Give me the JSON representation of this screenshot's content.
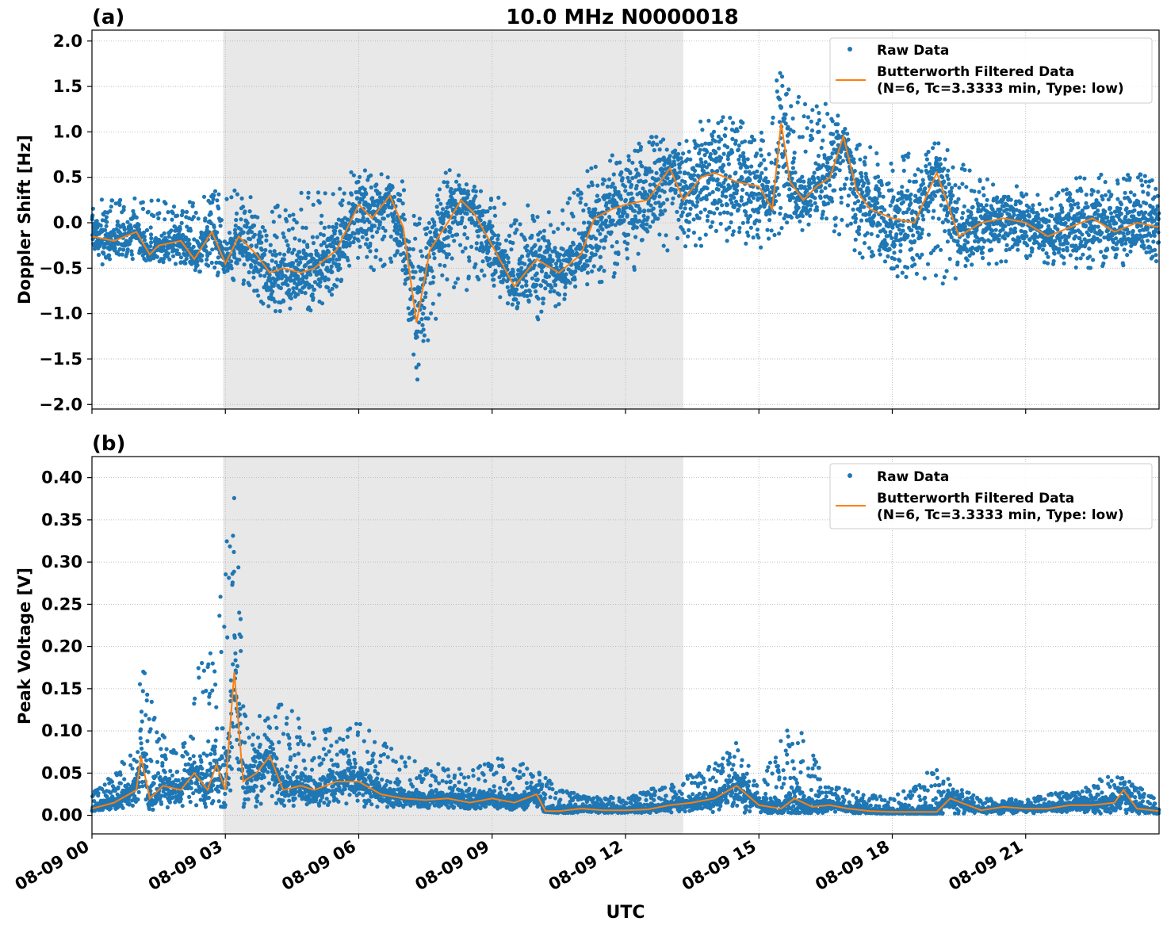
{
  "figure": {
    "title": "10.0 MHz N0000018",
    "xlabel": "UTC",
    "x_tick_labels": [
      "08-09 00",
      "08-09 03",
      "08-09 06",
      "08-09 09",
      "08-09 12",
      "08-09 15",
      "08-09 18",
      "08-09 21"
    ]
  },
  "legend": {
    "raw": "Raw Data",
    "filtered_line1": "Butterworth Filtered Data",
    "filtered_line2": "(N=6, Tc=3.3333 min, Type: low)"
  },
  "colors": {
    "raw": "#1f77b4",
    "filtered": "#ff7f0e",
    "shade": "#e8e8e8",
    "grid": "#b0b0b0"
  },
  "chart_data": [
    {
      "panel_label": "(a)",
      "type": "scatter",
      "ylabel": "Doppler Shift [Hz]",
      "xlim_hours": [
        0,
        24
      ],
      "ylim": [
        -2.05,
        2.12
      ],
      "y_ticks": [
        -2.0,
        -1.5,
        -1.0,
        -0.5,
        0.0,
        0.5,
        1.0,
        1.5,
        2.0
      ],
      "y_tick_labels": [
        "−2.0",
        "−1.5",
        "−1.0",
        "−0.5",
        "0.0",
        "0.5",
        "1.0",
        "1.5",
        "2.0"
      ],
      "x_ticks_hours": [
        0,
        3,
        6,
        9,
        12,
        15,
        18,
        21
      ],
      "shaded_span_hours": [
        2.95,
        13.3
      ],
      "grid": true,
      "legend_position": "upper right",
      "series": [
        {
          "name": "Raw Data",
          "kind": "scatter",
          "envelope": {
            "hours": [
              0,
              1,
              2,
              3,
              4,
              5,
              6,
              7,
              7.3,
              8,
              9,
              10,
              11,
              12,
              13,
              14,
              15,
              15.5,
              16,
              16.7,
              17,
              18,
              19,
              20,
              21,
              22,
              23,
              24
            ],
            "low": [
              -0.5,
              -0.4,
              -0.5,
              -0.6,
              -1.0,
              -1.0,
              -0.5,
              -0.6,
              -1.8,
              -0.7,
              -0.8,
              -1.1,
              -0.7,
              -0.6,
              -0.4,
              -0.2,
              -0.3,
              -0.2,
              -0.1,
              -0.1,
              -0.3,
              -0.6,
              -0.7,
              -0.5,
              -0.4,
              -0.5,
              -0.5,
              -0.5
            ],
            "high": [
              0.25,
              0.3,
              0.2,
              0.4,
              0.2,
              0.45,
              0.6,
              0.5,
              0.0,
              0.6,
              0.3,
              0.2,
              0.55,
              0.9,
              1.0,
              1.2,
              1.1,
              1.75,
              1.3,
              1.4,
              1.0,
              0.7,
              0.9,
              0.5,
              0.4,
              0.5,
              0.6,
              0.5
            ]
          }
        },
        {
          "name": "Butterworth Filtered Data (N=6, Tc=3.3333 min, Type: low)",
          "kind": "line",
          "hours": [
            0,
            0.5,
            1,
            1.3,
            1.5,
            2,
            2.3,
            2.7,
            3,
            3.3,
            3.7,
            4,
            4.3,
            4.7,
            5,
            5.5,
            6,
            6.3,
            6.7,
            7,
            7.3,
            7.6,
            8,
            8.3,
            8.6,
            9,
            9.5,
            10,
            10.5,
            11,
            11.3,
            11.7,
            12,
            12.5,
            13,
            13.3,
            13.7,
            14,
            14.5,
            15,
            15.3,
            15.5,
            15.7,
            16,
            16.3,
            16.6,
            16.9,
            17.2,
            17.5,
            18,
            18.5,
            19,
            19.5,
            20,
            20.5,
            21,
            21.5,
            22,
            22.5,
            23,
            23.5,
            24
          ],
          "y": [
            -0.15,
            -0.2,
            -0.1,
            -0.35,
            -0.25,
            -0.2,
            -0.4,
            -0.1,
            -0.45,
            -0.15,
            -0.35,
            -0.55,
            -0.5,
            -0.55,
            -0.5,
            -0.3,
            0.2,
            0.05,
            0.3,
            -0.05,
            -1.1,
            -0.3,
            0.0,
            0.25,
            0.1,
            -0.25,
            -0.7,
            -0.4,
            -0.55,
            -0.35,
            0.05,
            0.15,
            0.2,
            0.25,
            0.6,
            0.25,
            0.5,
            0.55,
            0.45,
            0.4,
            0.15,
            1.1,
            0.45,
            0.25,
            0.4,
            0.5,
            0.95,
            0.35,
            0.15,
            0.05,
            0.0,
            0.55,
            -0.15,
            0.0,
            0.05,
            0.0,
            -0.15,
            -0.05,
            0.05,
            -0.1,
            0.0,
            -0.05
          ]
        }
      ]
    },
    {
      "panel_label": "(b)",
      "type": "scatter",
      "ylabel": "Peak Voltage [V]",
      "xlim_hours": [
        0,
        24
      ],
      "ylim": [
        -0.022,
        0.425
      ],
      "y_ticks": [
        0.0,
        0.05,
        0.1,
        0.15,
        0.2,
        0.25,
        0.3,
        0.35,
        0.4
      ],
      "y_tick_labels": [
        "0.00",
        "0.05",
        "0.10",
        "0.15",
        "0.20",
        "0.25",
        "0.30",
        "0.35",
        "0.40"
      ],
      "x_ticks_hours": [
        0,
        3,
        6,
        9,
        12,
        15,
        18,
        21
      ],
      "shaded_span_hours": [
        2.95,
        13.3
      ],
      "grid": true,
      "legend_position": "upper right",
      "series": [
        {
          "name": "Raw Data",
          "kind": "scatter",
          "envelope": {
            "hours": [
              0,
              1,
              1.1,
              1.5,
              2,
              2.3,
              2.8,
              3.2,
              3.5,
              4,
              5,
              6,
              7,
              8,
              9,
              10,
              10.5,
              12,
              13,
              14,
              14.5,
              15,
              15.8,
              16.5,
              17,
              18,
              19,
              20,
              21,
              22,
              23,
              24
            ],
            "low": [
              0.005,
              0.01,
              0.01,
              0.005,
              0.01,
              0.01,
              0.01,
              0.01,
              0.01,
              0.01,
              0.01,
              0.01,
              0.01,
              0.008,
              0.008,
              0.005,
              0.003,
              0.003,
              0.003,
              0.003,
              0.003,
              0.003,
              0.003,
              0.003,
              0.003,
              0.002,
              0.002,
              0.002,
              0.002,
              0.002,
              0.002,
              0.002
            ],
            "high": [
              0.03,
              0.08,
              0.19,
              0.1,
              0.08,
              0.17,
              0.22,
              0.4,
              0.1,
              0.15,
              0.1,
              0.11,
              0.07,
              0.06,
              0.07,
              0.06,
              0.03,
              0.02,
              0.04,
              0.06,
              0.09,
              0.04,
              0.12,
              0.04,
              0.03,
              0.02,
              0.06,
              0.02,
              0.02,
              0.03,
              0.05,
              0.02
            ]
          }
        },
        {
          "name": "Butterworth Filtered Data (N=6, Tc=3.3333 min, Type: low)",
          "kind": "line",
          "hours": [
            0,
            0.5,
            1,
            1.1,
            1.3,
            1.6,
            2,
            2.3,
            2.6,
            2.8,
            3,
            3.2,
            3.4,
            3.7,
            4,
            4.3,
            4.7,
            5,
            5.5,
            6,
            6.5,
            7,
            7.5,
            8,
            8.5,
            9,
            9.5,
            10,
            10.2,
            10.5,
            11,
            11.5,
            12,
            12.5,
            13,
            13.5,
            14,
            14.5,
            15,
            15.5,
            15.8,
            16.2,
            16.6,
            17,
            17.5,
            18,
            18.5,
            19,
            19.3,
            20,
            20.5,
            21,
            21.5,
            22,
            22.5,
            23,
            23.2,
            23.5,
            24
          ],
          "y": [
            0.008,
            0.015,
            0.03,
            0.07,
            0.02,
            0.035,
            0.03,
            0.05,
            0.03,
            0.06,
            0.03,
            0.17,
            0.04,
            0.05,
            0.07,
            0.03,
            0.035,
            0.03,
            0.04,
            0.04,
            0.025,
            0.02,
            0.018,
            0.02,
            0.015,
            0.02,
            0.015,
            0.025,
            0.005,
            0.005,
            0.008,
            0.006,
            0.006,
            0.007,
            0.012,
            0.015,
            0.02,
            0.035,
            0.012,
            0.008,
            0.02,
            0.01,
            0.012,
            0.008,
            0.005,
            0.004,
            0.004,
            0.004,
            0.02,
            0.006,
            0.01,
            0.008,
            0.008,
            0.012,
            0.012,
            0.015,
            0.03,
            0.008,
            0.005
          ]
        }
      ]
    }
  ]
}
